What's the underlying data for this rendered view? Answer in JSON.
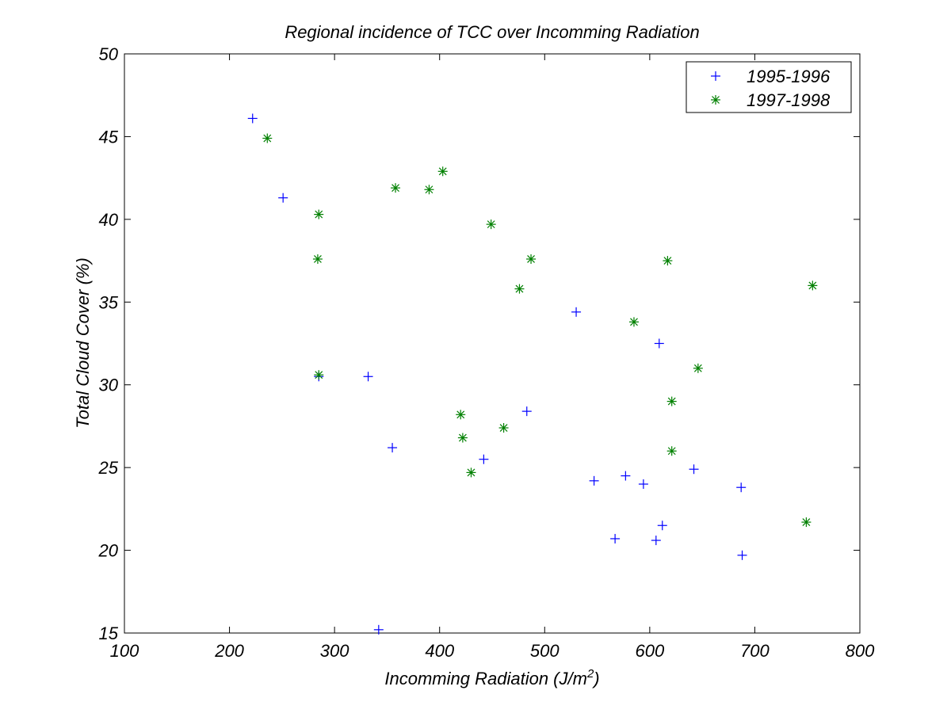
{
  "chart_data": {
    "type": "scatter",
    "title": "Regional incidence of TCC over Incomming Radiation",
    "xlabel": "Incomming Radiation (J/m",
    "xlabel_superscript": "2",
    "xlabel_suffix": ")",
    "ylabel": "Total Cloud Cover (%)",
    "xlim": [
      100,
      800
    ],
    "ylim": [
      15,
      50
    ],
    "xticks": [
      100,
      200,
      300,
      400,
      500,
      600,
      700,
      800
    ],
    "yticks": [
      15,
      20,
      25,
      30,
      35,
      40,
      45,
      50
    ],
    "grid": false,
    "legend_position": "top-right",
    "series": [
      {
        "name": "1995-1996",
        "marker": "plus",
        "color": "#0000ff",
        "points": [
          [
            222,
            46.1
          ],
          [
            251,
            41.3
          ],
          [
            285,
            30.5
          ],
          [
            332,
            30.5
          ],
          [
            355,
            26.2
          ],
          [
            342,
            15.2
          ],
          [
            442,
            25.5
          ],
          [
            483,
            28.4
          ],
          [
            530,
            34.4
          ],
          [
            547,
            24.2
          ],
          [
            577,
            24.5
          ],
          [
            567,
            20.7
          ],
          [
            594,
            24.0
          ],
          [
            609,
            32.5
          ],
          [
            612,
            21.5
          ],
          [
            606,
            20.6
          ],
          [
            642,
            24.9
          ],
          [
            687,
            23.8
          ],
          [
            688,
            19.7
          ]
        ]
      },
      {
        "name": "1997-1998",
        "marker": "asterisk",
        "color": "#008000",
        "points": [
          [
            236,
            44.9
          ],
          [
            285,
            40.3
          ],
          [
            284,
            37.6
          ],
          [
            285,
            30.6
          ],
          [
            358,
            41.9
          ],
          [
            390,
            41.8
          ],
          [
            403,
            42.9
          ],
          [
            449,
            39.7
          ],
          [
            487,
            37.6
          ],
          [
            476,
            35.8
          ],
          [
            420,
            28.2
          ],
          [
            422,
            26.8
          ],
          [
            461,
            27.4
          ],
          [
            430,
            24.7
          ],
          [
            585,
            33.8
          ],
          [
            617,
            37.5
          ],
          [
            646,
            31.0
          ],
          [
            621,
            29.0
          ],
          [
            621,
            26.0
          ],
          [
            755,
            36.0
          ],
          [
            749,
            21.7
          ]
        ]
      }
    ]
  }
}
